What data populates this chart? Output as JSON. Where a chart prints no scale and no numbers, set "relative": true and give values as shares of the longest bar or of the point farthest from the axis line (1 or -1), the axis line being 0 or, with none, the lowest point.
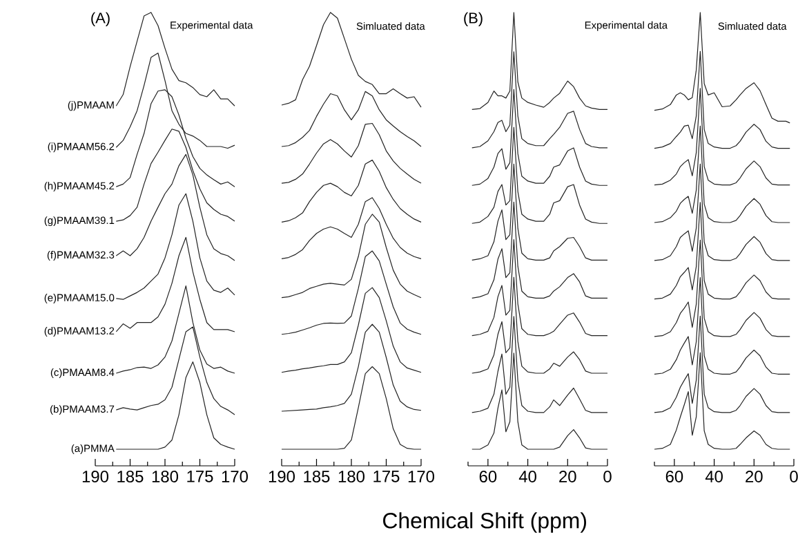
{
  "chart_data": [
    {
      "type": "line",
      "title": "(A)",
      "subtitle": "Experimental data",
      "relative": true,
      "tick_labels": "x",
      "color": "#222222",
      "xlim": [
        190,
        170
      ],
      "xticks": [
        190,
        {
          "value": 187.5,
          "label": null
        },
        185,
        {
          "value": 182.5,
          "label": null
        },
        180,
        {
          "value": 177.5,
          "label": null
        },
        175,
        {
          "value": 172.5,
          "label": null
        },
        170
      ],
      "x": [
        187,
        186,
        185,
        184,
        183,
        182,
        181,
        180,
        179,
        178,
        177,
        176,
        175,
        174,
        173,
        172,
        171,
        170
      ],
      "series": [
        {
          "name": "(j)PMAAM",
          "values": [
            0.786,
            0.812,
            0.876,
            0.934,
            0.992,
            1.0,
            0.97,
            0.918,
            0.87,
            0.844,
            0.839,
            0.828,
            0.812,
            0.807,
            0.823,
            0.802,
            0.802,
            0.786
          ]
        },
        {
          "name": "(i)PMAAM56.2",
          "values": [
            0.691,
            0.707,
            0.738,
            0.775,
            0.833,
            0.897,
            0.907,
            0.844,
            0.775,
            0.744,
            0.723,
            0.717,
            0.707,
            0.693,
            0.693,
            0.693,
            0.689,
            0.696
          ]
        },
        {
          "name": "(h)PMAAM45.2",
          "values": [
            0.601,
            0.607,
            0.622,
            0.675,
            0.723,
            0.791,
            0.82,
            0.823,
            0.807,
            0.765,
            0.712,
            0.67,
            0.643,
            0.628,
            0.617,
            0.607,
            0.612,
            0.601
          ]
        },
        {
          "name": "(g)PMAAM39.1",
          "values": [
            0.522,
            0.525,
            0.535,
            0.554,
            0.607,
            0.654,
            0.68,
            0.707,
            0.733,
            0.728,
            0.691,
            0.638,
            0.596,
            0.564,
            0.549,
            0.538,
            0.533,
            0.522
          ]
        },
        {
          "name": "(f)PMAAM32.3",
          "values": [
            0.443,
            0.454,
            0.443,
            0.459,
            0.485,
            0.522,
            0.554,
            0.585,
            0.607,
            0.649,
            0.675,
            0.628,
            0.554,
            0.491,
            0.459,
            0.448,
            0.443,
            0.432
          ]
        },
        {
          "name": "(e)PMAAM15.0",
          "values": [
            0.345,
            0.343,
            0.351,
            0.359,
            0.369,
            0.385,
            0.401,
            0.438,
            0.491,
            0.559,
            0.585,
            0.522,
            0.438,
            0.385,
            0.364,
            0.359,
            0.369,
            0.353
          ]
        },
        {
          "name": "(d)PMAAM13.2",
          "values": [
            0.269,
            0.287,
            0.277,
            0.29,
            0.29,
            0.29,
            0.303,
            0.332,
            0.38,
            0.443,
            0.485,
            0.406,
            0.343,
            0.29,
            0.274,
            0.274,
            0.274,
            0.269
          ]
        },
        {
          "name": "(c)PMAAM8.4",
          "values": [
            0.174,
            0.179,
            0.182,
            0.187,
            0.188,
            0.185,
            0.193,
            0.211,
            0.248,
            0.311,
            0.374,
            0.29,
            0.227,
            0.195,
            0.185,
            0.188,
            0.179,
            0.174
          ]
        },
        {
          "name": "(b)PMAAM3.7",
          "values": [
            0.09,
            0.095,
            0.092,
            0.09,
            0.095,
            0.1,
            0.103,
            0.113,
            0.142,
            0.206,
            0.269,
            0.28,
            0.211,
            0.153,
            0.116,
            0.098,
            0.09,
            0.079
          ]
        },
        {
          "name": "(a)PMMA",
          "values": [
            0,
            0,
            0,
            0,
            0,
            0,
            0,
            0.005,
            0.021,
            0.079,
            0.164,
            0.2,
            0.153,
            0.079,
            0.026,
            0.011,
            0.005,
            0
          ]
        }
      ]
    },
    {
      "type": "line",
      "subtitle": "Simluated data",
      "relative": true,
      "tick_labels": "x",
      "color": "#222222",
      "xlim": [
        190,
        170
      ],
      "xticks": [
        190,
        {
          "value": 187.5,
          "label": null
        },
        185,
        {
          "value": 182.5,
          "label": null
        },
        180,
        {
          "value": 177.5,
          "label": null
        },
        175,
        {
          "value": 172.5,
          "label": null
        },
        170
      ],
      "x": [
        190,
        189,
        188,
        187,
        186,
        185,
        184,
        183,
        182,
        181,
        180,
        179,
        178,
        177,
        176,
        175,
        174,
        173,
        172,
        171,
        170
      ],
      "series": [
        {
          "values": [
            0.788,
            0.792,
            0.8,
            0.846,
            0.877,
            0.924,
            0.972,
            1.0,
            0.987,
            0.94,
            0.893,
            0.856,
            0.842,
            0.835,
            0.814,
            0.814,
            0.825,
            0.814,
            0.804,
            0.807,
            0.783
          ]
        },
        {
          "values": [
            0.693,
            0.695,
            0.702,
            0.714,
            0.73,
            0.762,
            0.79,
            0.814,
            0.809,
            0.777,
            0.754,
            0.777,
            0.819,
            0.809,
            0.777,
            0.754,
            0.74,
            0.727,
            0.716,
            0.706,
            0.693
          ]
        },
        {
          "values": [
            0.609,
            0.611,
            0.618,
            0.63,
            0.653,
            0.678,
            0.699,
            0.709,
            0.699,
            0.683,
            0.669,
            0.695,
            0.744,
            0.746,
            0.72,
            0.683,
            0.66,
            0.643,
            0.63,
            0.618,
            0.609
          ]
        },
        {
          "values": [
            0.52,
            0.523,
            0.53,
            0.541,
            0.567,
            0.588,
            0.604,
            0.609,
            0.601,
            0.588,
            0.58,
            0.604,
            0.653,
            0.662,
            0.636,
            0.599,
            0.572,
            0.551,
            0.538,
            0.527,
            0.52
          ]
        },
        {
          "values": [
            0.436,
            0.439,
            0.446,
            0.457,
            0.478,
            0.494,
            0.504,
            0.509,
            0.504,
            0.494,
            0.485,
            0.515,
            0.567,
            0.576,
            0.551,
            0.515,
            0.483,
            0.462,
            0.449,
            0.441,
            0.436
          ]
        },
        {
          "values": [
            0.347,
            0.349,
            0.354,
            0.359,
            0.368,
            0.373,
            0.378,
            0.38,
            0.378,
            0.376,
            0.389,
            0.441,
            0.515,
            0.538,
            0.52,
            0.462,
            0.41,
            0.378,
            0.362,
            0.354,
            0.347
          ]
        },
        {
          "values": [
            0.263,
            0.265,
            0.268,
            0.273,
            0.278,
            0.284,
            0.288,
            0.289,
            0.288,
            0.289,
            0.305,
            0.368,
            0.441,
            0.454,
            0.431,
            0.378,
            0.326,
            0.289,
            0.275,
            0.268,
            0.263
          ]
        },
        {
          "values": [
            0.176,
            0.179,
            0.181,
            0.184,
            0.186,
            0.189,
            0.191,
            0.194,
            0.194,
            0.2,
            0.221,
            0.284,
            0.357,
            0.37,
            0.347,
            0.294,
            0.236,
            0.2,
            0.186,
            0.181,
            0.176
          ]
        },
        {
          "values": [
            0.087,
            0.088,
            0.089,
            0.09,
            0.091,
            0.092,
            0.095,
            0.097,
            0.1,
            0.105,
            0.126,
            0.189,
            0.268,
            0.286,
            0.268,
            0.21,
            0.147,
            0.11,
            0.097,
            0.091,
            0.089
          ]
        },
        {
          "values": [
            0,
            0,
            0,
            0,
            0,
            0,
            0,
            0,
            0,
            0.002,
            0.021,
            0.095,
            0.173,
            0.189,
            0.173,
            0.116,
            0.047,
            0.011,
            0.002,
            0,
            0
          ]
        }
      ]
    },
    {
      "type": "line",
      "title": "(B)",
      "subtitle": "Experimental data",
      "xlabel": "Chemical Shift (ppm)",
      "relative": true,
      "tick_labels": "x",
      "color": "#222222",
      "xlim": [
        70,
        0
      ],
      "xticks": [
        {
          "value": 70,
          "label": null
        },
        60,
        {
          "value": 50,
          "label": null
        },
        40,
        {
          "value": 30,
          "label": null
        },
        20,
        {
          "value": 10,
          "label": null
        },
        0
      ],
      "x": [
        68,
        64,
        60,
        57,
        55,
        53,
        51,
        49,
        47,
        45,
        43,
        40,
        36,
        32,
        29,
        27,
        24,
        20,
        17,
        14,
        11,
        8,
        4,
        0
      ],
      "series": [
        {
          "values": [
            0.778,
            0.78,
            0.794,
            0.82,
            0.809,
            0.809,
            0.804,
            0.82,
            1.0,
            0.841,
            0.804,
            0.794,
            0.788,
            0.783,
            0.794,
            0.804,
            0.815,
            0.843,
            0.83,
            0.804,
            0.786,
            0.781,
            0.778,
            0.778
          ]
        },
        {
          "values": [
            0.69,
            0.693,
            0.706,
            0.727,
            0.748,
            0.753,
            0.727,
            0.742,
            0.91,
            0.763,
            0.711,
            0.7,
            0.695,
            0.695,
            0.711,
            0.721,
            0.737,
            0.769,
            0.774,
            0.732,
            0.7,
            0.693,
            0.69,
            0.69
          ]
        },
        {
          "values": [
            0.604,
            0.607,
            0.62,
            0.646,
            0.677,
            0.688,
            0.641,
            0.656,
            0.824,
            0.677,
            0.625,
            0.614,
            0.609,
            0.609,
            0.625,
            0.646,
            0.651,
            0.683,
            0.69,
            0.646,
            0.614,
            0.607,
            0.604,
            0.604
          ]
        },
        {
          "values": [
            0.517,
            0.52,
            0.533,
            0.554,
            0.59,
            0.606,
            0.559,
            0.569,
            0.737,
            0.59,
            0.538,
            0.527,
            0.522,
            0.522,
            0.538,
            0.564,
            0.569,
            0.601,
            0.606,
            0.559,
            0.527,
            0.52,
            0.517,
            0.517
          ]
        },
        {
          "values": [
            0.433,
            0.436,
            0.443,
            0.475,
            0.522,
            0.548,
            0.48,
            0.491,
            0.653,
            0.506,
            0.449,
            0.436,
            0.433,
            0.433,
            0.438,
            0.454,
            0.464,
            0.483,
            0.485,
            0.464,
            0.438,
            0.433,
            0.433,
            0.433
          ]
        },
        {
          "values": [
            0.346,
            0.349,
            0.356,
            0.388,
            0.435,
            0.459,
            0.393,
            0.404,
            0.566,
            0.419,
            0.362,
            0.349,
            0.346,
            0.346,
            0.351,
            0.362,
            0.372,
            0.393,
            0.402,
            0.383,
            0.351,
            0.346,
            0.346,
            0.346
          ]
        },
        {
          "values": [
            0.26,
            0.263,
            0.27,
            0.302,
            0.349,
            0.375,
            0.307,
            0.318,
            0.48,
            0.333,
            0.276,
            0.263,
            0.26,
            0.26,
            0.265,
            0.27,
            0.286,
            0.307,
            0.312,
            0.291,
            0.265,
            0.26,
            0.26,
            0.26
          ]
        },
        {
          "values": [
            0.174,
            0.177,
            0.184,
            0.216,
            0.263,
            0.292,
            0.221,
            0.232,
            0.394,
            0.247,
            0.19,
            0.177,
            0.174,
            0.174,
            0.184,
            0.197,
            0.19,
            0.211,
            0.223,
            0.205,
            0.179,
            0.174,
            0.174,
            0.174
          ]
        },
        {
          "values": [
            0.084,
            0.087,
            0.094,
            0.126,
            0.178,
            0.218,
            0.126,
            0.142,
            0.304,
            0.157,
            0.1,
            0.087,
            0.084,
            0.084,
            0.097,
            0.113,
            0.1,
            0.124,
            0.14,
            0.115,
            0.089,
            0.084,
            0.084,
            0.084
          ]
        },
        {
          "values": [
            0,
            0,
            0.01,
            0.037,
            0.094,
            0.136,
            0.04,
            0.063,
            0.22,
            0.063,
            0.01,
            0,
            0,
            0,
            0,
            0,
            0.005,
            0.031,
            0.045,
            0.026,
            0.003,
            0,
            0,
            0
          ]
        }
      ]
    },
    {
      "type": "line",
      "subtitle": "Simluated data",
      "relative": true,
      "tick_labels": "x",
      "color": "#222222",
      "xlim": [
        70,
        0
      ],
      "xticks": [
        {
          "value": 70,
          "label": null
        },
        60,
        {
          "value": 50,
          "label": null
        },
        40,
        {
          "value": 30,
          "label": null
        },
        20,
        {
          "value": 10,
          "label": null
        },
        0
      ],
      "x": [
        70,
        66,
        62,
        59,
        57,
        55,
        53,
        51,
        49,
        47,
        45,
        43,
        40,
        36,
        32,
        29,
        27,
        24,
        20,
        17,
        14,
        11,
        8,
        4,
        2
      ],
      "series": [
        {
          "values": [
            0.776,
            0.779,
            0.789,
            0.811,
            0.816,
            0.811,
            0.8,
            0.805,
            0.868,
            1.0,
            0.837,
            0.811,
            0.816,
            0.784,
            0.786,
            0.8,
            0.811,
            0.826,
            0.839,
            0.821,
            0.789,
            0.758,
            0.751,
            0.751,
            0.747
          ]
        },
        {
          "values": [
            0.689,
            0.692,
            0.7,
            0.716,
            0.726,
            0.74,
            0.742,
            0.711,
            0.763,
            0.911,
            0.732,
            0.7,
            0.692,
            0.689,
            0.689,
            0.695,
            0.705,
            0.726,
            0.744,
            0.732,
            0.705,
            0.692,
            0.689,
            0.689,
            0.689
          ]
        },
        {
          "values": [
            0.605,
            0.607,
            0.616,
            0.63,
            0.647,
            0.656,
            0.663,
            0.626,
            0.679,
            0.826,
            0.647,
            0.616,
            0.607,
            0.605,
            0.605,
            0.61,
            0.621,
            0.642,
            0.66,
            0.647,
            0.621,
            0.607,
            0.605,
            0.605,
            0.605
          ]
        },
        {
          "values": [
            0.519,
            0.521,
            0.53,
            0.545,
            0.563,
            0.572,
            0.579,
            0.54,
            0.593,
            0.74,
            0.561,
            0.53,
            0.521,
            0.519,
            0.519,
            0.524,
            0.535,
            0.556,
            0.574,
            0.561,
            0.535,
            0.521,
            0.519,
            0.519,
            0.519
          ]
        },
        {
          "values": [
            0.432,
            0.434,
            0.443,
            0.464,
            0.485,
            0.493,
            0.5,
            0.453,
            0.506,
            0.653,
            0.474,
            0.443,
            0.434,
            0.432,
            0.432,
            0.437,
            0.448,
            0.469,
            0.487,
            0.474,
            0.448,
            0.434,
            0.432,
            0.432,
            0.432
          ]
        },
        {
          "values": [
            0.344,
            0.346,
            0.355,
            0.375,
            0.395,
            0.405,
            0.416,
            0.365,
            0.418,
            0.565,
            0.386,
            0.355,
            0.346,
            0.344,
            0.344,
            0.349,
            0.36,
            0.381,
            0.399,
            0.386,
            0.36,
            0.346,
            0.344,
            0.344,
            0.344
          ]
        },
        {
          "values": [
            0.258,
            0.26,
            0.269,
            0.29,
            0.311,
            0.323,
            0.337,
            0.279,
            0.332,
            0.479,
            0.3,
            0.269,
            0.26,
            0.258,
            0.258,
            0.263,
            0.274,
            0.295,
            0.313,
            0.3,
            0.274,
            0.26,
            0.258,
            0.258,
            0.258
          ]
        },
        {
          "values": [
            0.172,
            0.174,
            0.183,
            0.205,
            0.227,
            0.243,
            0.258,
            0.193,
            0.246,
            0.393,
            0.214,
            0.183,
            0.174,
            0.172,
            0.172,
            0.177,
            0.188,
            0.209,
            0.227,
            0.214,
            0.188,
            0.174,
            0.172,
            0.172,
            0.172
          ]
        },
        {
          "values": [
            0.084,
            0.086,
            0.095,
            0.119,
            0.142,
            0.158,
            0.173,
            0.105,
            0.158,
            0.305,
            0.126,
            0.095,
            0.086,
            0.084,
            0.084,
            0.089,
            0.1,
            0.121,
            0.139,
            0.126,
            0.1,
            0.086,
            0.084,
            0.084,
            0.084
          ]
        },
        {
          "values": [
            0,
            0.002,
            0.011,
            0.044,
            0.074,
            0.102,
            0.132,
            0.032,
            0.074,
            0.221,
            0.042,
            0.011,
            0.002,
            0,
            0,
            0.002,
            0.011,
            0.026,
            0.042,
            0.032,
            0.011,
            0.002,
            0,
            0,
            0
          ]
        }
      ]
    }
  ]
}
